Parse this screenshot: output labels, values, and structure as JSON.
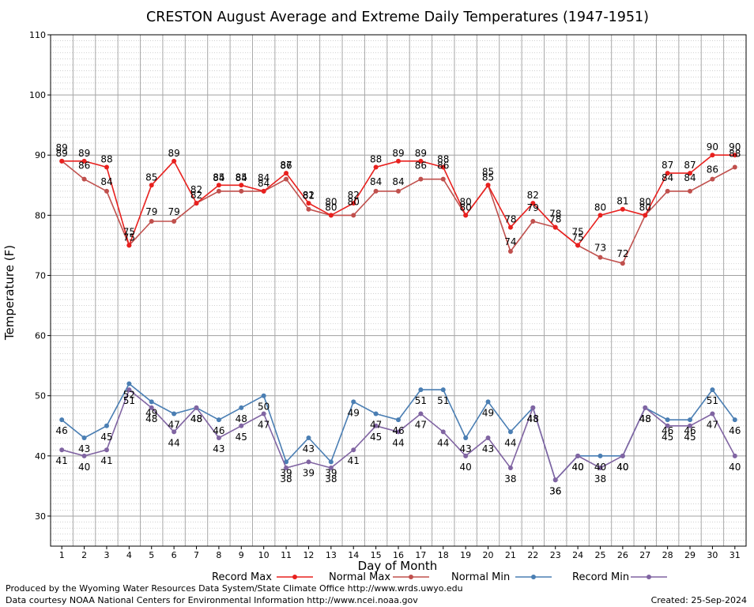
{
  "chart_data": {
    "type": "line",
    "title": "CRESTON August Average and Extreme Daily Temperatures (1947-1951)",
    "xlabel": "Day of Month",
    "ylabel": "Temperature (F)",
    "ylim": [
      25,
      110
    ],
    "y_ticks": [
      30,
      40,
      50,
      60,
      70,
      80,
      90,
      100,
      110
    ],
    "x": [
      1,
      2,
      3,
      4,
      5,
      6,
      7,
      8,
      9,
      10,
      11,
      12,
      13,
      14,
      15,
      16,
      17,
      18,
      19,
      20,
      21,
      22,
      23,
      24,
      25,
      26,
      27,
      28,
      29,
      30,
      31
    ],
    "grid": true,
    "legend_position": "bottom",
    "series": [
      {
        "name": "Record Max",
        "color": "#e8201e",
        "values": [
          89,
          89,
          88,
          75,
          85,
          89,
          82,
          85,
          85,
          84,
          87,
          82,
          80,
          82,
          88,
          89,
          89,
          88,
          80,
          85,
          78,
          82,
          78,
          75,
          80,
          81,
          80,
          87,
          87,
          90,
          90
        ]
      },
      {
        "name": "Normal Max",
        "color": "#c0504d",
        "values": [
          89,
          86,
          84,
          75,
          79,
          79,
          82,
          84,
          84,
          84,
          86,
          81,
          80,
          80,
          84,
          84,
          86,
          86,
          80,
          85,
          74,
          79,
          78,
          75,
          73,
          72,
          80,
          84,
          84,
          86,
          88
        ]
      },
      {
        "name": "Normal Min",
        "color": "#4a7eb3",
        "values": [
          46,
          43,
          45,
          52,
          49,
          47,
          48,
          46,
          48,
          50,
          39,
          43,
          39,
          49,
          47,
          46,
          51,
          51,
          43,
          49,
          44,
          48,
          36,
          40,
          40,
          40,
          48,
          46,
          46,
          51,
          46
        ]
      },
      {
        "name": "Record Min",
        "color": "#8064a2",
        "values": [
          41,
          40,
          41,
          51,
          48,
          44,
          48,
          43,
          45,
          47,
          38,
          39,
          38,
          41,
          45,
          44,
          47,
          44,
          40,
          43,
          38,
          48,
          36,
          40,
          38,
          40,
          48,
          45,
          45,
          47,
          40
        ]
      }
    ]
  },
  "footer": {
    "produced_by": "Produced by the Wyoming Water Resources Data System/State Climate Office http://www.wrds.uwyo.edu",
    "courtesy": "Data courtesy NOAA National Centers for Environmental Information http://www.ncei.noaa.gov",
    "created": "Created:  25-Sep-2024"
  }
}
